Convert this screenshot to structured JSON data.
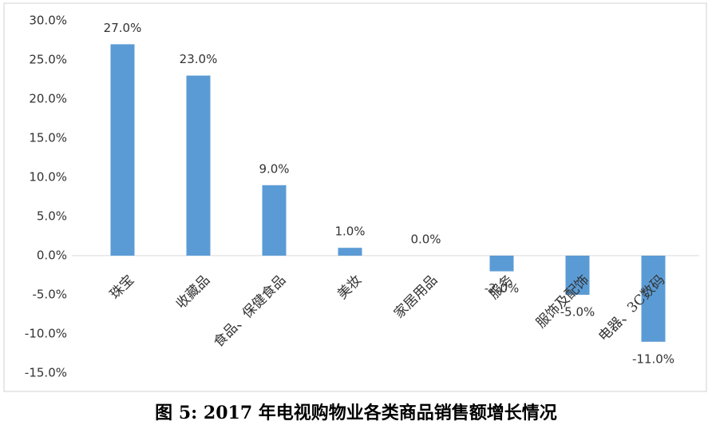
{
  "chart_data": {
    "type": "bar",
    "title": "图 5: 2017 年电视购物业各类商品销售额增长情况",
    "categories": [
      "珠宝",
      "收藏品",
      "食品、保健食品",
      "美妆",
      "家居用品",
      "服务",
      "服饰及配饰",
      "电器、3C数码"
    ],
    "values": [
      27,
      23,
      9,
      1,
      0,
      -2,
      -5,
      -11
    ],
    "value_labels": [
      "27.0%",
      "23.0%",
      "9.0%",
      "1.0%",
      "0.0%",
      "-2.0%",
      "-5.0%",
      "-11.0%"
    ],
    "color": "#5b9bd5",
    "ylim": [
      -15,
      30
    ],
    "yticks": [
      {
        "value": -15,
        "label": "-15.0%"
      },
      {
        "value": -10,
        "label": "-10.0%"
      },
      {
        "value": -5,
        "label": "-5.0%"
      },
      {
        "value": 0,
        "label": "0.0%"
      },
      {
        "value": 5,
        "label": "5.0%"
      },
      {
        "value": 10,
        "label": "10.0%"
      },
      {
        "value": 15,
        "label": "15.0%"
      },
      {
        "value": 20,
        "label": "20.0%"
      },
      {
        "value": 25,
        "label": "25.0%"
      },
      {
        "value": 30,
        "label": "30.0%"
      }
    ],
    "grid": false
  }
}
